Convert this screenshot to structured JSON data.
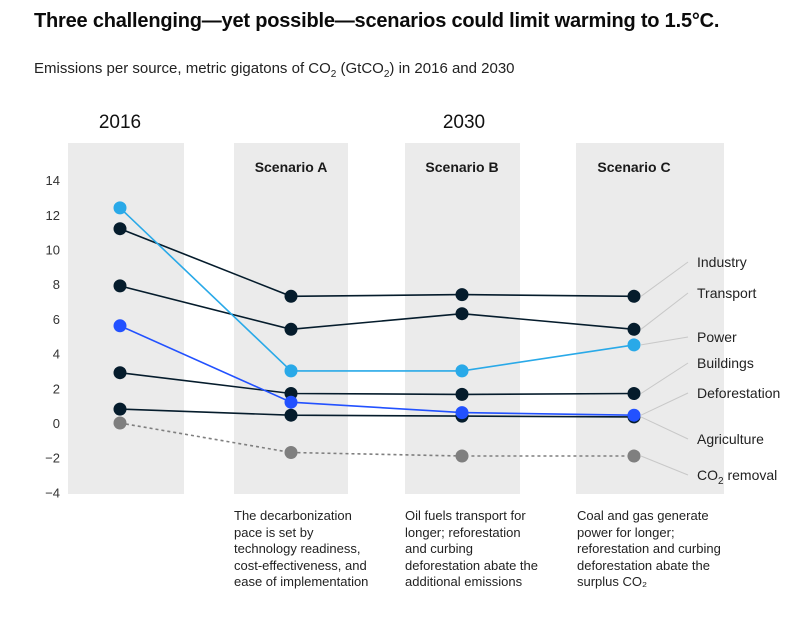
{
  "title": "Three challenging—yet possible—scenarios could limit warming to 1.5°C.",
  "subtitle_prefix": "Emissions per source, metric gigatons of CO",
  "subtitle_sub": "2",
  "subtitle_mid": " (GtCO",
  "subtitle_sub2": "2",
  "subtitle_suffix": ") in 2016 and 2030",
  "colors": {
    "panel": "#ebebeb",
    "dark": "#051c2c",
    "power": "#29a9e8",
    "deforestation": "#2251ff",
    "removal": "#7f7f7f",
    "connector": "#c8c8c8"
  },
  "chart_data": {
    "type": "line",
    "title": "Three challenging—yet possible—scenarios could limit warming to 1.5°C.",
    "ylabel": "Emissions per source, GtCO2",
    "ylim": [
      -4,
      14
    ],
    "yticks": [
      14,
      12,
      10,
      8,
      6,
      4,
      2,
      0,
      -2,
      -4
    ],
    "year_labels": [
      "2016",
      "2030"
    ],
    "categories": [
      "2016",
      "Scenario A",
      "Scenario B",
      "Scenario C"
    ],
    "series": [
      {
        "name": "Industry",
        "values": [
          11.2,
          7.3,
          7.4,
          7.3
        ]
      },
      {
        "name": "Transport",
        "values": [
          7.9,
          5.4,
          6.3,
          5.4
        ]
      },
      {
        "name": "Power",
        "values": [
          12.4,
          3.0,
          3.0,
          4.5
        ]
      },
      {
        "name": "Buildings",
        "values": [
          2.9,
          1.7,
          1.65,
          1.7
        ]
      },
      {
        "name": "Deforestation",
        "values": [
          5.6,
          1.2,
          0.6,
          0.45
        ]
      },
      {
        "name": "Agriculture",
        "values": [
          0.8,
          0.45,
          0.4,
          0.35
        ]
      },
      {
        "name": "CO₂ removal",
        "values": [
          0,
          -1.7,
          -1.9,
          -1.9
        ]
      }
    ],
    "scenario_notes": [
      "The decarbonization pace is set by technology readiness, cost-effectiveness, and ease of implementation",
      "Oil fuels transport for longer; reforestation and curbing deforestation abate the additional emissions",
      "Coal and gas generate power for longer; reforestation and curbing deforestation abate the surplus CO₂"
    ]
  }
}
